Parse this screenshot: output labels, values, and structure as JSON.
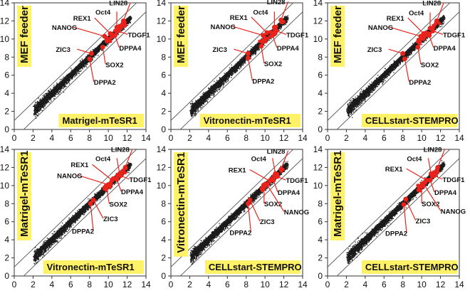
{
  "colors": {
    "points": "#1a1a1a",
    "highlight": "#e8231c",
    "label_box": "#fff266",
    "guide_line": "#555555"
  },
  "chart_data": [
    {
      "type": "scatter",
      "xlabel": "Matrigel-mTeSR1",
      "ylabel": "MEF feeder",
      "xlim": [
        0,
        14
      ],
      "ylim": [
        0,
        14
      ],
      "xticks": [
        0,
        2,
        4,
        6,
        8,
        10,
        12,
        14
      ],
      "yticks": [
        0,
        2,
        4,
        6,
        8,
        10,
        12,
        14
      ],
      "guide_lines": [
        "y = x + 1",
        "y = x - 1"
      ],
      "genes": [
        {
          "name": "LIN28",
          "x": 11.6,
          "y": 12.0
        },
        {
          "name": "Oct4",
          "x": 10.9,
          "y": 11.3
        },
        {
          "name": "REX1",
          "x": 10.2,
          "y": 10.6
        },
        {
          "name": "NANOG",
          "x": 9.6,
          "y": 10.3
        },
        {
          "name": "TDGF1",
          "x": 11.0,
          "y": 10.9
        },
        {
          "name": "DPPA4",
          "x": 10.7,
          "y": 10.4
        },
        {
          "name": "ZIC3",
          "x": 8.2,
          "y": 8.4
        },
        {
          "name": "SOX2",
          "x": 9.4,
          "y": 9.1
        },
        {
          "name": "DPPA2",
          "x": 8.0,
          "y": 7.8
        }
      ]
    },
    {
      "type": "scatter",
      "xlabel": "Vitronectin-mTeSR1",
      "ylabel": "MEF feeder",
      "xlim": [
        0,
        14
      ],
      "ylim": [
        0,
        14
      ],
      "xticks": [
        0,
        2,
        4,
        6,
        8,
        10,
        12,
        14
      ],
      "yticks": [
        0,
        2,
        4,
        6,
        8,
        10,
        12,
        14
      ],
      "guide_lines": [
        "y = x + 1",
        "y = x - 1"
      ],
      "genes": [
        {
          "name": "LIN28",
          "x": 11.7,
          "y": 12.1
        },
        {
          "name": "Oct4",
          "x": 11.0,
          "y": 11.3
        },
        {
          "name": "REX1",
          "x": 10.2,
          "y": 10.7
        },
        {
          "name": "NANOG",
          "x": 9.8,
          "y": 10.4
        },
        {
          "name": "TDGF1",
          "x": 11.2,
          "y": 10.9
        },
        {
          "name": "DPPA4",
          "x": 10.8,
          "y": 10.4
        },
        {
          "name": "ZIC3",
          "x": 8.2,
          "y": 8.4
        },
        {
          "name": "SOX2",
          "x": 9.6,
          "y": 9.2
        },
        {
          "name": "DPPA2",
          "x": 8.2,
          "y": 7.9
        }
      ]
    },
    {
      "type": "scatter",
      "xlabel": "CELLstart-STEMPRO",
      "ylabel": "MEF feeder",
      "xlim": [
        0,
        14
      ],
      "ylim": [
        0,
        14
      ],
      "xticks": [
        0,
        2,
        4,
        6,
        8,
        10,
        12,
        14
      ],
      "yticks": [
        0,
        2,
        4,
        6,
        8,
        10,
        12,
        14
      ],
      "guide_lines": [
        "y = x + 1",
        "y = x - 1"
      ],
      "genes": [
        {
          "name": "LIN28",
          "x": 11.6,
          "y": 12.0
        },
        {
          "name": "Oct4",
          "x": 10.9,
          "y": 11.2
        },
        {
          "name": "REX1",
          "x": 10.2,
          "y": 10.6
        },
        {
          "name": "NANOG",
          "x": 9.9,
          "y": 10.3
        },
        {
          "name": "TDGF1",
          "x": 11.2,
          "y": 10.9
        },
        {
          "name": "DPPA4",
          "x": 10.8,
          "y": 10.4
        },
        {
          "name": "ZIC3",
          "x": 8.0,
          "y": 8.4
        },
        {
          "name": "SOX2",
          "x": 9.6,
          "y": 9.1
        },
        {
          "name": "DPPA2",
          "x": 8.2,
          "y": 7.8
        }
      ]
    },
    {
      "type": "scatter",
      "xlabel": "Vitronectin-mTeSR1",
      "ylabel": "Matrigel-mTeSR1",
      "xlim": [
        0,
        14
      ],
      "ylim": [
        0,
        14
      ],
      "xticks": [
        0,
        2,
        4,
        6,
        8,
        10,
        12,
        14
      ],
      "yticks": [
        0,
        2,
        4,
        6,
        8,
        10,
        12,
        14
      ],
      "guide_lines": [
        "y = x + 1",
        "y = x - 1"
      ],
      "genes": [
        {
          "name": "LIN28",
          "x": 11.8,
          "y": 12.0
        },
        {
          "name": "Oct4",
          "x": 11.2,
          "y": 11.3
        },
        {
          "name": "REX1",
          "x": 10.4,
          "y": 10.6
        },
        {
          "name": "NANOG",
          "x": 10.0,
          "y": 10.1
        },
        {
          "name": "TDGF1",
          "x": 11.3,
          "y": 11.1
        },
        {
          "name": "DPPA4",
          "x": 10.9,
          "y": 10.7
        },
        {
          "name": "ZIC3",
          "x": 8.4,
          "y": 8.4
        },
        {
          "name": "SOX2",
          "x": 9.8,
          "y": 9.7
        },
        {
          "name": "DPPA2",
          "x": 8.1,
          "y": 8.0
        }
      ]
    },
    {
      "type": "scatter",
      "xlabel": "CELLstart-STEMPRO",
      "ylabel": "Vitronectin-mTeSR1",
      "xlim": [
        0,
        14
      ],
      "ylim": [
        0,
        14
      ],
      "xticks": [
        0,
        2,
        4,
        6,
        8,
        10,
        12,
        14
      ],
      "yticks": [
        0,
        2,
        4,
        6,
        8,
        10,
        12,
        14
      ],
      "guide_lines": [
        "y = x + 1",
        "y = x - 1"
      ],
      "genes": [
        {
          "name": "LIN28",
          "x": 11.7,
          "y": 11.8
        },
        {
          "name": "Oct4",
          "x": 11.1,
          "y": 11.3
        },
        {
          "name": "REX1",
          "x": 10.5,
          "y": 10.5
        },
        {
          "name": "TDGF1",
          "x": 11.3,
          "y": 11.0
        },
        {
          "name": "DPPA4",
          "x": 10.9,
          "y": 10.6
        },
        {
          "name": "SOX2",
          "x": 9.9,
          "y": 9.9
        },
        {
          "name": "NANOG",
          "x": 10.2,
          "y": 10.1
        },
        {
          "name": "ZIC3",
          "x": 8.4,
          "y": 8.4
        },
        {
          "name": "DPPA2",
          "x": 8.2,
          "y": 8.0
        }
      ]
    },
    {
      "type": "scatter",
      "xlabel": "CELLstart-STEMPRO",
      "ylabel": "Matrigel-mTeSR1",
      "xlim": [
        0,
        14
      ],
      "ylim": [
        0,
        14
      ],
      "xticks": [
        0,
        2,
        4,
        6,
        8,
        10,
        12,
        14
      ],
      "yticks": [
        0,
        2,
        4,
        6,
        8,
        10,
        12,
        14
      ],
      "guide_lines": [
        "y = x + 1",
        "y = x - 1"
      ],
      "genes": [
        {
          "name": "LIN28",
          "x": 11.7,
          "y": 12.0
        },
        {
          "name": "Oct4",
          "x": 11.0,
          "y": 11.3
        },
        {
          "name": "REX1",
          "x": 10.5,
          "y": 10.6
        },
        {
          "name": "TDGF1",
          "x": 11.3,
          "y": 11.1
        },
        {
          "name": "DPPA4",
          "x": 10.9,
          "y": 10.6
        },
        {
          "name": "SOX2",
          "x": 10.0,
          "y": 9.9
        },
        {
          "name": "NANOG",
          "x": 10.2,
          "y": 10.2
        },
        {
          "name": "ZIC3",
          "x": 8.3,
          "y": 8.5
        },
        {
          "name": "DPPA2",
          "x": 8.1,
          "y": 7.9
        }
      ]
    }
  ]
}
